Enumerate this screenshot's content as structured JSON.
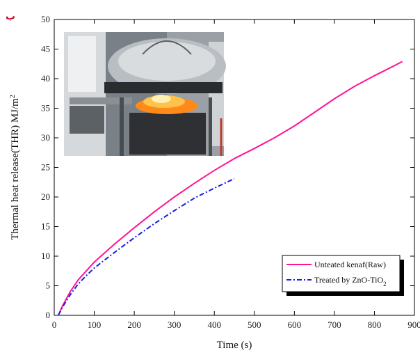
{
  "panel_label": "ب",
  "chart_data": {
    "type": "line",
    "xlabel": "Time (s)",
    "ylabel_main": "Thermal heat release(THR) MJ/m",
    "ylabel_sup": "2",
    "xlim": [
      0,
      900
    ],
    "ylim": [
      0,
      50
    ],
    "x_ticks": [
      0,
      100,
      200,
      300,
      400,
      500,
      600,
      700,
      800,
      900
    ],
    "y_ticks": [
      0,
      5,
      10,
      15,
      20,
      25,
      30,
      35,
      40,
      45,
      50
    ],
    "x_tick_labels": [
      "0",
      "100",
      "200",
      "300",
      "400",
      "500",
      "600",
      "700",
      "800",
      "900"
    ],
    "y_tick_labels": [
      "0",
      "5",
      "10",
      "15",
      "20",
      "25",
      "30",
      "35",
      "40",
      "45",
      "50"
    ],
    "grid": false,
    "legend_position": "bottom-right",
    "series": [
      {
        "name": "Unteated kenaf(Raw)",
        "color": "#ff1493",
        "dash": "solid",
        "points": [
          [
            10,
            0
          ],
          [
            20,
            1.5
          ],
          [
            40,
            4
          ],
          [
            60,
            6
          ],
          [
            80,
            7.5
          ],
          [
            100,
            9
          ],
          [
            150,
            12
          ],
          [
            200,
            14.8
          ],
          [
            250,
            17.5
          ],
          [
            300,
            20
          ],
          [
            350,
            22.3
          ],
          [
            400,
            24.5
          ],
          [
            450,
            26.5
          ],
          [
            500,
            28.2
          ],
          [
            550,
            30
          ],
          [
            600,
            32
          ],
          [
            650,
            34.3
          ],
          [
            700,
            36.6
          ],
          [
            750,
            38.7
          ],
          [
            800,
            40.5
          ],
          [
            850,
            42.2
          ],
          [
            870,
            42.9
          ]
        ]
      },
      {
        "name_main": "Treated by ZnO-TiO",
        "name_sub": "2",
        "color": "#1a1ae6",
        "dash": "dashdot",
        "points": [
          [
            10,
            0
          ],
          [
            20,
            1.3
          ],
          [
            40,
            3.5
          ],
          [
            60,
            5.3
          ],
          [
            80,
            6.7
          ],
          [
            100,
            8
          ],
          [
            150,
            10.6
          ],
          [
            200,
            13.1
          ],
          [
            250,
            15.5
          ],
          [
            300,
            17.7
          ],
          [
            350,
            19.8
          ],
          [
            400,
            21.5
          ],
          [
            450,
            23.1
          ]
        ]
      }
    ]
  },
  "inset_photo": {
    "description_hidden": true
  }
}
